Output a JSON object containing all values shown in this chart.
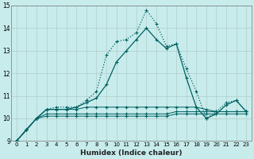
{
  "xlabel": "Humidex (Indice chaleur)",
  "background_color": "#c8ecec",
  "grid_color": "#b0cccc",
  "line_color": "#006060",
  "x_values": [
    0,
    1,
    2,
    3,
    4,
    5,
    6,
    7,
    8,
    9,
    10,
    11,
    12,
    13,
    14,
    15,
    16,
    17,
    18,
    19,
    20,
    21,
    22,
    23
  ],
  "series": [
    {
      "y": [
        9.0,
        9.5,
        10.0,
        10.4,
        10.5,
        10.5,
        10.5,
        10.8,
        11.2,
        12.8,
        13.4,
        13.5,
        13.8,
        14.8,
        14.2,
        13.2,
        13.3,
        12.2,
        11.2,
        10.0,
        10.3,
        10.7,
        10.8,
        10.3
      ],
      "linestyle": ":",
      "linewidth": 0.9,
      "marker": "+"
    },
    {
      "y": [
        9.0,
        9.5,
        10.0,
        10.4,
        10.4,
        10.4,
        10.5,
        10.7,
        10.9,
        11.5,
        12.5,
        13.0,
        13.5,
        14.0,
        13.5,
        13.1,
        13.3,
        11.8,
        10.5,
        10.0,
        10.2,
        10.6,
        10.8,
        10.3
      ],
      "linestyle": "-",
      "linewidth": 0.9,
      "marker": "+"
    },
    {
      "y": [
        9.0,
        9.5,
        10.0,
        10.4,
        10.4,
        10.4,
        10.4,
        10.5,
        10.5,
        10.5,
        10.5,
        10.5,
        10.5,
        10.5,
        10.5,
        10.5,
        10.5,
        10.5,
        10.5,
        10.4,
        10.3,
        10.3,
        10.3,
        10.3
      ],
      "linestyle": "-",
      "linewidth": 0.7,
      "marker": "+"
    },
    {
      "y": [
        9.0,
        9.5,
        10.0,
        10.2,
        10.2,
        10.2,
        10.2,
        10.2,
        10.2,
        10.2,
        10.2,
        10.2,
        10.2,
        10.2,
        10.2,
        10.2,
        10.3,
        10.3,
        10.3,
        10.3,
        10.3,
        10.3,
        10.3,
        10.3
      ],
      "linestyle": "-",
      "linewidth": 0.7,
      "marker": "+"
    },
    {
      "y": [
        9.0,
        9.5,
        10.0,
        10.1,
        10.1,
        10.1,
        10.1,
        10.1,
        10.1,
        10.1,
        10.1,
        10.1,
        10.1,
        10.1,
        10.1,
        10.1,
        10.2,
        10.2,
        10.2,
        10.2,
        10.2,
        10.2,
        10.2,
        10.2
      ],
      "linestyle": "-",
      "linewidth": 0.7,
      "marker": "+"
    }
  ],
  "ylim": [
    9,
    15
  ],
  "xlim": [
    -0.5,
    23.5
  ],
  "yticks": [
    9,
    10,
    11,
    12,
    13,
    14,
    15
  ],
  "xticks": [
    0,
    1,
    2,
    3,
    4,
    5,
    6,
    7,
    8,
    9,
    10,
    11,
    12,
    13,
    14,
    15,
    16,
    17,
    18,
    19,
    20,
    21,
    22,
    23
  ]
}
